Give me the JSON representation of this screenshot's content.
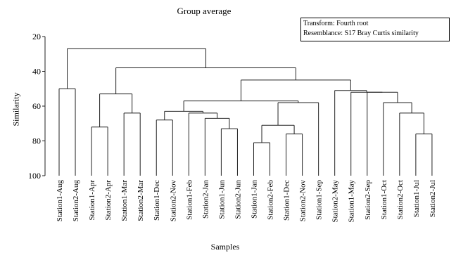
{
  "title": "Group average",
  "legend": {
    "transform": "Transform: Fourth root",
    "resemblance": "Resemblance: S17 Bray Curtis similarity"
  },
  "axes": {
    "ylabel": "Similarity",
    "xlabel": "Samples",
    "yticks": [
      20,
      40,
      60,
      80,
      100
    ],
    "ylim": [
      20,
      100
    ]
  },
  "dendrogram": {
    "leaves": [
      "Station1-Aug",
      "Station2-Aug",
      "Station1-Apr",
      "Station2-Apr",
      "Station1-Mar",
      "Station2-Mar",
      "Station1-Dec",
      "Station2-Nov",
      "Station1-Feb",
      "Station2-Jan",
      "Station1-Jun",
      "Station2-Jun",
      "Station1-Jan",
      "Station2-Feb",
      "Station1-Dec",
      "Station2-Nov",
      "Station1-Sep",
      "Station2-May",
      "Station1-May",
      "Station2-Sep",
      "Station1-Oct",
      "Station2-Oct",
      "Station1-Jul",
      "Station2-Jul"
    ],
    "merges": [
      {
        "a": 0,
        "b": 1,
        "sim": 50
      },
      {
        "a": 2,
        "b": 3,
        "sim": 72
      },
      {
        "a": 4,
        "b": 5,
        "sim": 64
      },
      {
        "a": 6,
        "b": 7,
        "sim": 68
      },
      {
        "a": 10,
        "b": 11,
        "sim": 73
      },
      {
        "a": 9,
        "b": 28,
        "sim": 67
      },
      {
        "a": 8,
        "b": 29,
        "sim": 64
      },
      {
        "a": 27,
        "b": 30,
        "sim": 63
      },
      {
        "a": 12,
        "b": 13,
        "sim": 81
      },
      {
        "a": 14,
        "b": 15,
        "sim": 76
      },
      {
        "a": 32,
        "b": 33,
        "sim": 71
      },
      {
        "a": 34,
        "b": 16,
        "sim": 58
      },
      {
        "a": 31,
        "b": 35,
        "sim": 57
      },
      {
        "a": 25,
        "b": 26,
        "sim": 53
      },
      {
        "a": 22,
        "b": 23,
        "sim": 76
      },
      {
        "a": 21,
        "b": 38,
        "sim": 64
      },
      {
        "a": 20,
        "b": 39,
        "sim": 58
      },
      {
        "a": 19,
        "b": 40,
        "sim": 52
      },
      {
        "a": 18,
        "b": 41,
        "sim": 52
      },
      {
        "a": 17,
        "b": 42,
        "sim": 51
      },
      {
        "a": 36,
        "b": 43,
        "sim": 45
      },
      {
        "a": 37,
        "b": 44,
        "sim": 38
      },
      {
        "a": 24,
        "b": 45,
        "sim": 27
      }
    ]
  },
  "colors": {
    "line": "#222222"
  }
}
